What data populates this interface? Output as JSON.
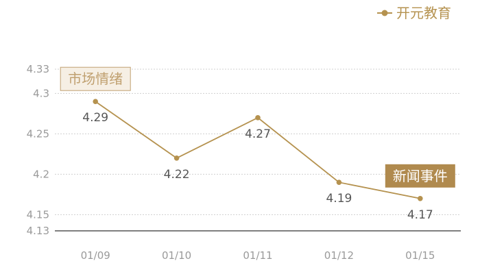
{
  "chart_data": {
    "type": "line",
    "categories": [
      "01/09",
      "01/10",
      "01/11",
      "01/12",
      "01/15"
    ],
    "series": [
      {
        "name": "开元教育",
        "values": [
          4.29,
          4.22,
          4.27,
          4.19,
          4.17
        ]
      }
    ],
    "ylim": [
      4.13,
      4.33
    ],
    "yticks": [
      "4.33",
      "4.3",
      "4.25",
      "4.2",
      "4.15",
      "4.13"
    ],
    "data_labels": [
      "4.29",
      "4.22",
      "4.27",
      "4.19",
      "4.17"
    ],
    "annotations": [
      {
        "text": "市场情绪",
        "category_index": 0,
        "style": "outline"
      },
      {
        "text": "新闻事件",
        "category_index": 4,
        "style": "filled"
      }
    ],
    "grid": true,
    "legend_position": "top-right",
    "title": "",
    "xlabel": "",
    "ylabel": ""
  },
  "colors": {
    "series": "#b5924f",
    "annotation_fill": "#b08a4e",
    "annotation_outline_bg": "#f6efe4",
    "annotation_outline_text": "#c0a070",
    "grid": "#cfcfcf",
    "axis": "#333333"
  }
}
